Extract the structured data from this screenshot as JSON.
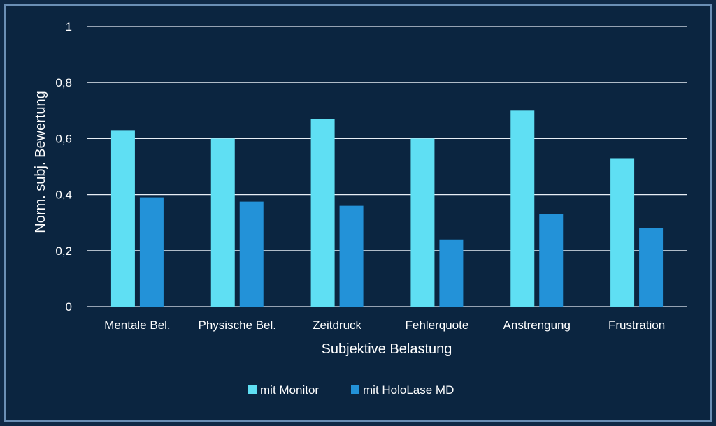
{
  "chart_data": {
    "type": "bar",
    "categories": [
      "Mentale Bel.",
      "Physische Bel.",
      "Zeitdruck",
      "Fehlerquote",
      "Anstrengung",
      "Frustration"
    ],
    "series": [
      {
        "name": "mit Monitor",
        "values": [
          0.63,
          0.6,
          0.67,
          0.6,
          0.7,
          0.53
        ],
        "color": "#5fdff3"
      },
      {
        "name": "mit HoloLase MD",
        "values": [
          0.39,
          0.375,
          0.36,
          0.24,
          0.33,
          0.28
        ],
        "color": "#2392d8"
      }
    ],
    "xlabel": "Subjektive Belastung",
    "ylabel": "Norm. subj. Bewertung",
    "ylim": [
      0,
      1
    ],
    "yticks": [
      0,
      0.2,
      0.4,
      0.6,
      0.8,
      1
    ],
    "ytick_labels": [
      "0",
      "0,2",
      "0,4",
      "0,6",
      "0,8",
      "1"
    ],
    "grid": true,
    "legend_position": "bottom"
  },
  "colors": {
    "background": "#0b2540",
    "grid": "#e8eef5",
    "text": "#ffffff"
  }
}
